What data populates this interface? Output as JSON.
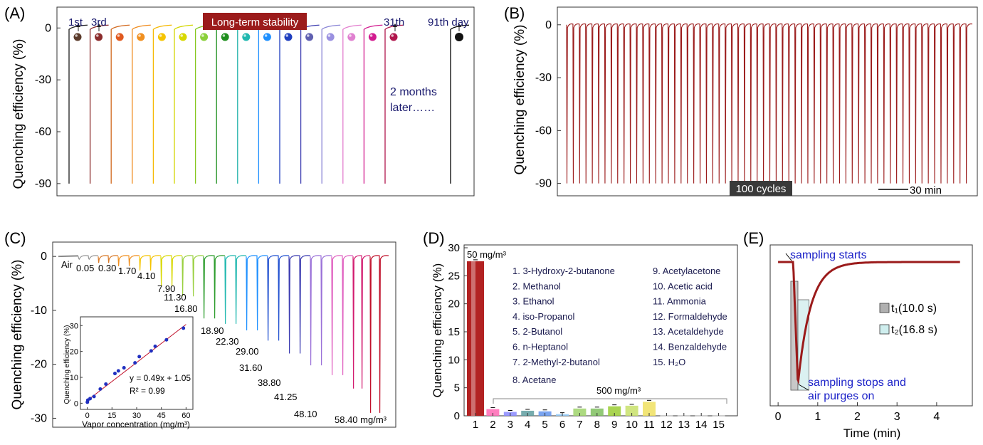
{
  "panel_labels": {
    "a": "(A)",
    "b": "(B)",
    "c": "(C)",
    "d": "(D)",
    "e": "(E)"
  },
  "colors": {
    "dark_red": "#9b1b1b",
    "navy": "#1a1a6e",
    "blue_text": "#1c22c8"
  },
  "chart_data": [
    {
      "id": "A",
      "type": "line",
      "ylabel": "Quenching efficiency (%)",
      "ylim": [
        -95,
        10
      ],
      "yticks": [
        0,
        -30,
        -60,
        -90
      ],
      "banner": "Long-term stability",
      "labels": {
        "first": "1st",
        "third": "3rd",
        "last": "31th",
        "day91": "91th day"
      },
      "note": "2 months\nlater……",
      "n_cycles": 16,
      "depth": -90,
      "colors": [
        "#1e1e1e",
        "#8b2c2c",
        "#d2691e",
        "#f08c1e",
        "#f5b800",
        "#d4d600",
        "#86c81e",
        "#1f8f1f",
        "#20b2aa",
        "#1e90ff",
        "#1f3fbf",
        "#3d3db0",
        "#8a85d6",
        "#e37fcf",
        "#d21b8f",
        "#b0174d"
      ],
      "dot_colors": [
        "#5a3a2a",
        "#8b2c2c",
        "#e05a20",
        "#f09020",
        "#f5c400",
        "#d8d800",
        "#8ad03a",
        "#1f8f1f",
        "#20b8b0",
        "#1e90ff",
        "#1f3fbf",
        "#6060b0",
        "#9a90e0",
        "#e080d0",
        "#d21b8f",
        "#b0174d"
      ],
      "extra_cycle": {
        "label": "91th day",
        "color": "#000000",
        "depth": -90
      }
    },
    {
      "id": "B",
      "type": "line",
      "ylabel": "Quenching efficiency (%)",
      "ylim": [
        -95,
        8
      ],
      "yticks": [
        0,
        -30,
        -60,
        -90
      ],
      "series": [
        {
          "color": "#9b1b1b",
          "n_cycles": 100,
          "depth": -90
        }
      ],
      "badge": "100 cycles",
      "scale_bar": "30 min"
    },
    {
      "id": "C",
      "type": "line",
      "ylabel": "Quenching efficiency (%)",
      "ylim": [
        -31,
        2
      ],
      "yticks": [
        0,
        -10,
        -20,
        -30
      ],
      "concentrations": [
        "Air",
        "0.05",
        "0.30",
        "1.70",
        "4.10",
        "7.90",
        "11.30",
        "16.80",
        "18.90",
        "22.30",
        "29.00",
        "31.60",
        "38.80",
        "41.25",
        "48.10",
        "58.40 mg/m³"
      ],
      "depths": [
        0,
        -0.4,
        -1.2,
        -1.8,
        -2.6,
        -5.5,
        -7.4,
        -11.5,
        -12.5,
        -13.7,
        -15.6,
        -18.0,
        -20.2,
        -22.0,
        -24.5,
        -29.0
      ],
      "colors": [
        "#888888",
        "#999999",
        "#d87a2a",
        "#f09020",
        "#f5c400",
        "#d8d800",
        "#9ad040",
        "#2d9d2d",
        "#20b8b0",
        "#1e90ff",
        "#2050d0",
        "#3a3ab0",
        "#9a70d8",
        "#e060c0",
        "#d21b6f",
        "#c0102a"
      ],
      "inset": {
        "type": "scatter",
        "xlabel": "Vapor concentration (mg/m³)",
        "ylabel": "Quenching efficiency (%)",
        "xlim": [
          -2,
          62
        ],
        "ylim": [
          -1,
          32
        ],
        "xticks": [
          0,
          15,
          30,
          45,
          60
        ],
        "yticks": [
          0,
          10,
          20,
          30
        ],
        "x": [
          0.05,
          0.3,
          1.7,
          4.1,
          7.9,
          11.3,
          16.8,
          18.9,
          22.3,
          29.0,
          31.6,
          38.8,
          41.25,
          48.1,
          58.4
        ],
        "y": [
          0.4,
          1.2,
          1.8,
          2.6,
          5.5,
          7.4,
          11.5,
          12.5,
          13.7,
          15.6,
          18.0,
          20.2,
          22.0,
          24.5,
          29.0
        ],
        "equation": "y = 0.49x + 1.05",
        "r2": "R² = 0.99"
      }
    },
    {
      "id": "D",
      "type": "bar",
      "ylabel": "Quenching efficiency (%)",
      "ylim": [
        0,
        30
      ],
      "yticks": [
        0,
        5,
        10,
        15,
        20,
        25,
        30
      ],
      "categories": [
        "1",
        "2",
        "3",
        "4",
        "5",
        "6",
        "7",
        "8",
        "9",
        "10",
        "11",
        "12",
        "13",
        "14",
        "15"
      ],
      "values": [
        27.6,
        1.2,
        0.7,
        0.9,
        0.8,
        0.3,
        1.3,
        1.3,
        1.7,
        1.8,
        2.5,
        0.05,
        0.05,
        0.05,
        0.05
      ],
      "colors": [
        "#b22222",
        "#ff69b4",
        "#8a8aff",
        "#5f9ea0",
        "#6495ed",
        "#90caf9",
        "#9fd46b",
        "#7fbf5f",
        "#9acd32",
        "#c8e06a",
        "#f0e060",
        "#d0d0d0",
        "#d0d0d0",
        "#d0d0d0",
        "#d0d0d0"
      ],
      "label_high": "50 mg/m³",
      "label_low": "500 mg/m³",
      "legend": [
        "1. 3-Hydroxy-2-butanone",
        "2. Methanol",
        "3. Ethanol",
        "4. iso-Propanol",
        "5. 2-Butanol",
        "6. n-Heptanol",
        "7. 2-Methyl-2-butanol",
        "8. Acetane",
        "9. Acetylacetone",
        "10. Acetic acid",
        "11. Ammonia",
        "12. Formaldehyde",
        "13. Acetaldehyde",
        "14. Benzaldehyde",
        "15. H₂O"
      ]
    },
    {
      "id": "E",
      "type": "line",
      "xlabel": "Time (min)",
      "xlim": [
        -0.2,
        4.9
      ],
      "ylim": [
        -5,
        1
      ],
      "xticks": [
        0,
        1,
        2,
        3,
        4
      ],
      "series": [
        {
          "color": "#9b1b1b",
          "t": [
            0,
            0.42,
            0.5,
            0.7,
            1.0,
            2.0,
            3.0,
            4.6
          ]
        }
      ],
      "annotations": {
        "start": "sampling starts",
        "stop": "sampling stops and\nair purges on"
      },
      "legend": [
        {
          "label": "t₁(10.0 s)",
          "color": "#b0b0b0"
        },
        {
          "label": "t₂(16.8 s)",
          "color": "#cfeeee"
        }
      ]
    }
  ]
}
